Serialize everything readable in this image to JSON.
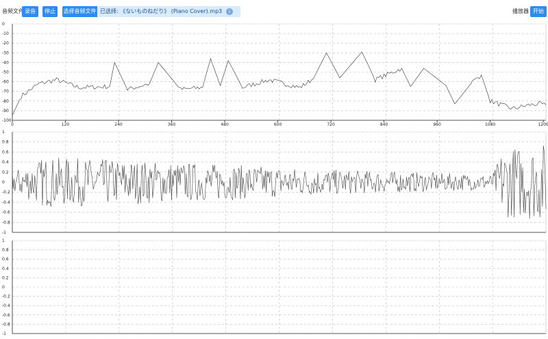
{
  "toolbar": {
    "source_label": "音频文件",
    "btn_record": "录音",
    "btn_stop": "停止",
    "file_tag": "选择音频文件",
    "file_name": "已选择: 《ないものねだり》 (Piano Cover).mp3",
    "info_glyph": "i",
    "mode_label": "播放器",
    "btn_start": "开始"
  },
  "chart_data": [
    {
      "type": "line",
      "title": "",
      "xlabel": "",
      "ylabel": "",
      "xlim": [
        0,
        1206
      ],
      "ylim": [
        -100,
        0
      ],
      "xticks": [
        0,
        120,
        240,
        360,
        480,
        600,
        720,
        840,
        960,
        1080,
        1200
      ],
      "yticks": [
        0,
        -10,
        -20,
        -30,
        -40,
        -50,
        -60,
        -70,
        -80,
        -90,
        -100
      ],
      "description_series": "frequency spectrum (dB)",
      "peaks": [
        {
          "x": 0,
          "y": -95
        },
        {
          "x": 20,
          "y": -75
        },
        {
          "x": 60,
          "y": -62
        },
        {
          "x": 100,
          "y": -58
        },
        {
          "x": 150,
          "y": -66
        },
        {
          "x": 220,
          "y": -65
        },
        {
          "x": 231,
          "y": -40
        },
        {
          "x": 260,
          "y": -68
        },
        {
          "x": 310,
          "y": -62
        },
        {
          "x": 330,
          "y": -40
        },
        {
          "x": 380,
          "y": -68
        },
        {
          "x": 430,
          "y": -66
        },
        {
          "x": 448,
          "y": -36
        },
        {
          "x": 470,
          "y": -64
        },
        {
          "x": 488,
          "y": -38
        },
        {
          "x": 520,
          "y": -66
        },
        {
          "x": 580,
          "y": -58
        },
        {
          "x": 650,
          "y": -66
        },
        {
          "x": 680,
          "y": -57
        },
        {
          "x": 710,
          "y": -30
        },
        {
          "x": 740,
          "y": -56
        },
        {
          "x": 790,
          "y": -29
        },
        {
          "x": 820,
          "y": -58
        },
        {
          "x": 880,
          "y": -46
        },
        {
          "x": 900,
          "y": -65
        },
        {
          "x": 930,
          "y": -46
        },
        {
          "x": 980,
          "y": -64
        },
        {
          "x": 1000,
          "y": -83
        },
        {
          "x": 1040,
          "y": -60
        },
        {
          "x": 1060,
          "y": -53
        },
        {
          "x": 1080,
          "y": -80
        },
        {
          "x": 1130,
          "y": -88
        },
        {
          "x": 1170,
          "y": -84
        },
        {
          "x": 1190,
          "y": -83
        },
        {
          "x": 1206,
          "y": -84
        }
      ]
    },
    {
      "type": "line",
      "title": "",
      "xlabel": "",
      "ylabel": "",
      "ylim": [
        -1,
        1
      ],
      "yticks": [
        1,
        0.8,
        0.6,
        0.4,
        0.2,
        0,
        -0.2,
        -0.4,
        -0.6,
        -0.8,
        -1
      ],
      "envelope": [
        {
          "t": 0.0,
          "amp": 0.22
        },
        {
          "t": 0.06,
          "amp": 0.5
        },
        {
          "t": 0.2,
          "amp": 0.45
        },
        {
          "t": 0.4,
          "amp": 0.36
        },
        {
          "t": 0.6,
          "amp": 0.25
        },
        {
          "t": 0.9,
          "amp": 0.15
        },
        {
          "t": 0.92,
          "amp": 0.7
        },
        {
          "t": 1.0,
          "amp": 0.78
        }
      ]
    },
    {
      "type": "line",
      "title": "",
      "xlabel": "",
      "ylabel": "",
      "ylim": [
        -1,
        1
      ],
      "yticks": [
        1,
        0.8,
        0.6,
        0.4,
        0.2,
        0,
        -0.2,
        -0.4,
        -0.6,
        -0.8,
        -1
      ],
      "values": []
    }
  ]
}
